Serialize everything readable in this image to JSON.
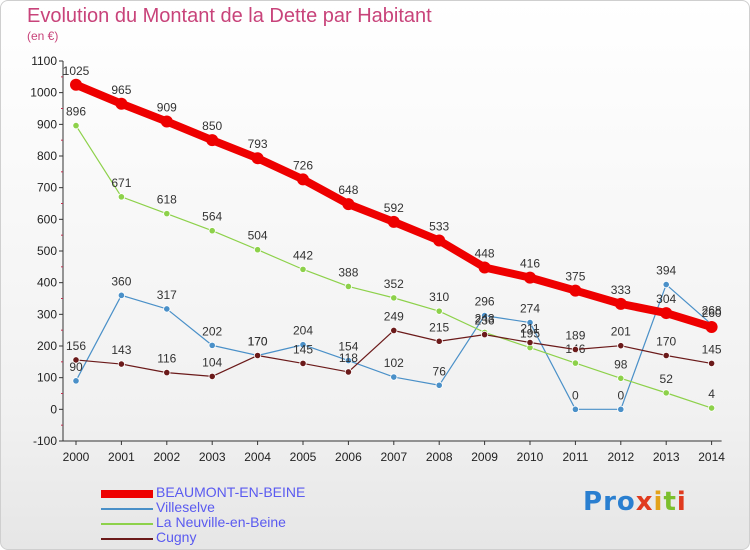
{
  "title": "Evolution du Montant de la Dette par Habitant",
  "unit": "(en €)",
  "logo": {
    "text": "Proxiti",
    "letters": [
      "P",
      "r",
      "o",
      "x",
      "i",
      "t",
      "i"
    ],
    "colors": [
      "#2a7fd0",
      "#2a7fd0",
      "#2a7fd0",
      "#e03a1e",
      "#e3a21a",
      "#7cbf2d",
      "#e03a1e"
    ]
  },
  "chart_data": {
    "type": "line",
    "title": "Evolution du Montant de la Dette par Habitant",
    "ylabel": "(en €)",
    "xlabel": "",
    "ylim": [
      -100,
      1100
    ],
    "yticks": [
      -100,
      0,
      100,
      200,
      300,
      400,
      500,
      600,
      700,
      800,
      900,
      1000,
      1100
    ],
    "categories": [
      "2000",
      "2001",
      "2002",
      "2003",
      "2004",
      "2005",
      "2006",
      "2007",
      "2008",
      "2009",
      "2010",
      "2011",
      "2012",
      "2013",
      "2014"
    ],
    "grid": false,
    "legend_position": "bottom-left",
    "series": [
      {
        "name": "Villeselve",
        "color": "#4a90c8",
        "width": 1.2,
        "values": [
          90,
          360,
          317,
          202,
          170,
          204,
          154,
          102,
          76,
          296,
          274,
          0,
          0,
          394,
          268
        ]
      },
      {
        "name": "La Neuville-en-Beine",
        "color": "#8dd14a",
        "width": 1.2,
        "values": [
          896,
          671,
          618,
          564,
          504,
          442,
          388,
          352,
          310,
          243,
          195,
          146,
          98,
          52,
          4
        ]
      },
      {
        "name": "Cugny",
        "color": "#6b1a1a",
        "width": 1.2,
        "values": [
          156,
          143,
          116,
          104,
          170,
          145,
          118,
          249,
          215,
          236,
          211,
          189,
          201,
          170,
          145
        ]
      },
      {
        "name": "BEAUMONT-EN-BEINE",
        "color": "#ee0000",
        "width": 8,
        "values": [
          1025,
          965,
          909,
          850,
          793,
          726,
          648,
          592,
          533,
          448,
          416,
          375,
          333,
          304,
          260
        ]
      }
    ],
    "legend_order": [
      "BEAUMONT-EN-BEINE",
      "Villeselve",
      "La Neuville-en-Beine",
      "Cugny"
    ]
  }
}
